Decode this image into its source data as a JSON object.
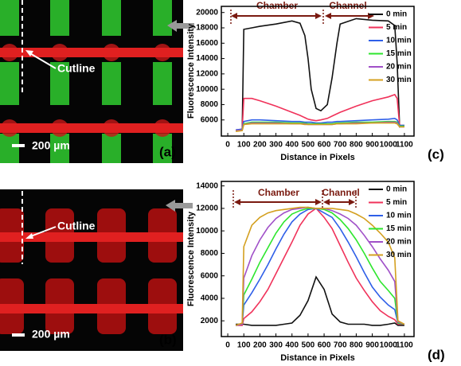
{
  "images": [
    {
      "panel_label": "(a)",
      "annotation": "Cutline",
      "scale_bar": "200 µm"
    },
    {
      "panel_label": "(b)",
      "annotation": "Cutline",
      "scale_bar": "200 µm"
    }
  ],
  "chart_data": [
    {
      "type": "line",
      "panel_label": "(c)",
      "x_label": "Distance in Pixels",
      "y_label": "Fluorescence Intensity",
      "annotations": [
        "Chamber",
        "Channel"
      ],
      "legend": "upper right",
      "xlim": [
        -40,
        1160
      ],
      "xticks": [
        0,
        100,
        200,
        300,
        400,
        500,
        600,
        700,
        800,
        900,
        1000,
        1100
      ],
      "ylim": [
        3900,
        20800
      ],
      "yticks": [
        6000,
        8000,
        10000,
        12000,
        14000,
        16000,
        18000,
        20000
      ],
      "x": [
        50,
        90,
        100,
        150,
        200,
        300,
        400,
        450,
        480,
        500,
        520,
        550,
        580,
        620,
        650,
        680,
        700,
        800,
        900,
        1000,
        1040,
        1055,
        1070,
        1100
      ],
      "series": [
        {
          "name": "0 min",
          "color": "#111111",
          "values": [
            4600,
            4700,
            17800,
            18000,
            18200,
            18500,
            18900,
            18600,
            17000,
            14000,
            10000,
            7500,
            7200,
            8000,
            11500,
            16000,
            18500,
            19200,
            19000,
            18900,
            18300,
            13500,
            5100,
            5200
          ]
        },
        {
          "name": "5 min",
          "color": "#f0325a",
          "values": [
            4700,
            4800,
            8800,
            8800,
            8500,
            7800,
            7000,
            6600,
            6300,
            6100,
            6000,
            5900,
            6000,
            6200,
            6500,
            6800,
            7000,
            7800,
            8500,
            9000,
            9300,
            8800,
            5300,
            5300
          ]
        },
        {
          "name": "10 min",
          "color": "#2f5fe8",
          "values": [
            4700,
            4800,
            5800,
            6000,
            6000,
            5900,
            5800,
            5800,
            5700,
            5700,
            5700,
            5600,
            5600,
            5700,
            5700,
            5800,
            5800,
            5900,
            6000,
            6100,
            6200,
            6000,
            5300,
            5300
          ]
        },
        {
          "name": "15 min",
          "color": "#2ee62e",
          "values": [
            4600,
            4700,
            5500,
            5700,
            5700,
            5700,
            5600,
            5600,
            5600,
            5500,
            5500,
            5500,
            5500,
            5500,
            5500,
            5600,
            5600,
            5700,
            5700,
            5800,
            5800,
            5700,
            5200,
            5200
          ]
        },
        {
          "name": "20 min",
          "color": "#a050c8",
          "values": [
            4600,
            4700,
            5400,
            5600,
            5600,
            5600,
            5500,
            5500,
            5500,
            5400,
            5400,
            5400,
            5400,
            5400,
            5400,
            5500,
            5500,
            5600,
            5600,
            5700,
            5700,
            5600,
            5100,
            5100
          ]
        },
        {
          "name": "30 min",
          "color": "#d4a020",
          "values": [
            4500,
            4600,
            5400,
            5500,
            5500,
            5500,
            5500,
            5500,
            5400,
            5400,
            5400,
            5400,
            5400,
            5400,
            5400,
            5500,
            5500,
            5500,
            5600,
            5600,
            5600,
            5500,
            5100,
            5100
          ]
        }
      ]
    },
    {
      "type": "line",
      "panel_label": "(d)",
      "x_label": "Distance in Pixels",
      "y_label": "Fluorescence Intensity",
      "annotations": [
        "Chamber",
        "Channel"
      ],
      "legend": "upper right",
      "xlim": [
        -40,
        1160
      ],
      "xticks": [
        0,
        100,
        200,
        300,
        400,
        500,
        600,
        700,
        800,
        900,
        1000,
        1100
      ],
      "ylim": [
        600,
        14400
      ],
      "yticks": [
        2000,
        4000,
        6000,
        8000,
        10000,
        12000,
        14000
      ],
      "x": [
        50,
        90,
        100,
        150,
        200,
        250,
        300,
        350,
        400,
        450,
        500,
        550,
        600,
        650,
        700,
        750,
        800,
        850,
        900,
        950,
        1000,
        1040,
        1060,
        1100
      ],
      "series": [
        {
          "name": "0 min",
          "color": "#111111",
          "values": [
            1700,
            1700,
            1700,
            1600,
            1600,
            1600,
            1600,
            1700,
            1800,
            2500,
            3800,
            5900,
            4800,
            2600,
            1900,
            1700,
            1700,
            1700,
            1600,
            1600,
            1700,
            1800,
            1600,
            1600
          ]
        },
        {
          "name": "5 min",
          "color": "#f0325a",
          "values": [
            1600,
            1600,
            2200,
            2800,
            3700,
            4800,
            6200,
            7600,
            9000,
            10500,
            11500,
            12000,
            11200,
            10200,
            8700,
            7200,
            5800,
            4700,
            3700,
            2900,
            2400,
            2100,
            1700,
            1700
          ]
        },
        {
          "name": "10 min",
          "color": "#2f5fe8",
          "values": [
            1600,
            1700,
            3400,
            4500,
            5700,
            7000,
            8400,
            9700,
            10800,
            11500,
            11900,
            12000,
            11600,
            11200,
            10200,
            9000,
            7700,
            6300,
            5000,
            4100,
            3400,
            3000,
            1800,
            1700
          ]
        },
        {
          "name": "15 min",
          "color": "#2ee62e",
          "values": [
            1600,
            1700,
            4300,
            5700,
            7200,
            8500,
            9800,
            10800,
            11500,
            11800,
            12000,
            12000,
            11900,
            11600,
            11000,
            10200,
            9200,
            8000,
            6700,
            5500,
            4700,
            4000,
            1800,
            1700
          ]
        },
        {
          "name": "20 min",
          "color": "#a050c8",
          "values": [
            1600,
            1700,
            5800,
            7800,
            9200,
            10300,
            11100,
            11600,
            11900,
            12000,
            12100,
            12000,
            12000,
            11800,
            11500,
            11100,
            10500,
            9600,
            8600,
            7500,
            6500,
            5500,
            1900,
            1700
          ]
        },
        {
          "name": "30 min",
          "color": "#d4a020",
          "values": [
            1600,
            1800,
            8600,
            10500,
            11200,
            11600,
            11800,
            11900,
            12000,
            12100,
            12100,
            12000,
            12000,
            12000,
            11900,
            11800,
            11500,
            11100,
            10500,
            9800,
            9000,
            7600,
            2000,
            1700
          ]
        }
      ]
    }
  ]
}
